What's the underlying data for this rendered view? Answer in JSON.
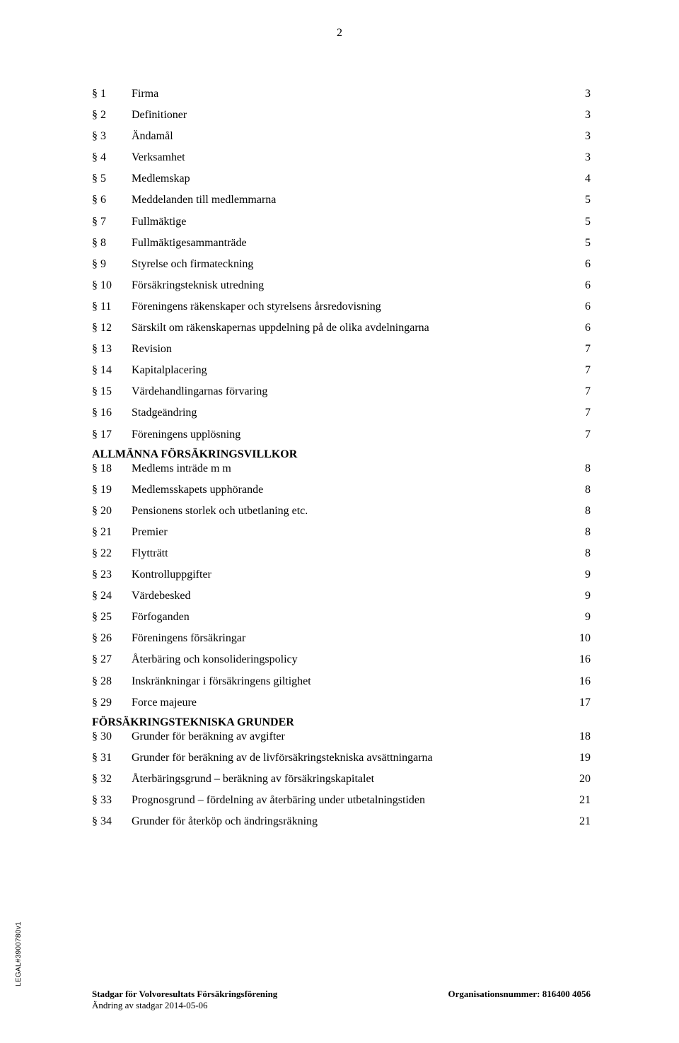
{
  "page_number": "2",
  "toc": [
    {
      "sym": "§ 1",
      "title": "Firma",
      "page": "3"
    },
    {
      "sym": "§ 2",
      "title": "Definitioner",
      "page": "3"
    },
    {
      "sym": "§ 3",
      "title": "Ändamål",
      "page": "3"
    },
    {
      "sym": "§ 4",
      "title": "Verksamhet",
      "page": "3"
    },
    {
      "sym": "§ 5",
      "title": "Medlemskap",
      "page": "4"
    },
    {
      "sym": "§ 6",
      "title": "Meddelanden till medlemmarna",
      "page": "5"
    },
    {
      "sym": "§ 7",
      "title": "Fullmäktige",
      "page": "5"
    },
    {
      "sym": "§ 8",
      "title": "Fullmäktigesammanträde",
      "page": "5"
    },
    {
      "sym": "§ 9",
      "title": "Styrelse och firmateckning",
      "page": "6"
    },
    {
      "sym": "§ 10",
      "title": "Försäkringsteknisk utredning",
      "page": "6"
    },
    {
      "sym": "§ 11",
      "title": "Föreningens räkenskaper och styrelsens årsredovisning",
      "page": "6"
    },
    {
      "sym": "§ 12",
      "title": "Särskilt om räkenskapernas uppdelning på de olika avdelningarna",
      "page": "6"
    },
    {
      "sym": "§ 13",
      "title": "Revision",
      "page": "7"
    },
    {
      "sym": "§ 14",
      "title": "Kapitalplacering",
      "page": "7"
    },
    {
      "sym": "§ 15",
      "title": "Värdehandlingarnas förvaring",
      "page": "7"
    },
    {
      "sym": "§ 16",
      "title": "Stadgeändring",
      "page": "7"
    },
    {
      "sym": "§ 17",
      "title": "Föreningens upplösning",
      "page": "7"
    }
  ],
  "section1_heading": "ALLMÄNNA FÖRSÄKRINGSVILLKOR",
  "toc2": [
    {
      "sym": "§ 18",
      "title": "Medlems inträde m m",
      "page": "8"
    },
    {
      "sym": "§ 19",
      "title": "Medlemsskapets upphörande",
      "page": "8"
    },
    {
      "sym": "§ 20",
      "title": "Pensionens storlek och utbetlaning etc.",
      "page": "8"
    },
    {
      "sym": "§ 21",
      "title": "Premier",
      "page": "8"
    },
    {
      "sym": "§ 22",
      "title": "Flytträtt",
      "page": "8"
    },
    {
      "sym": "§ 23",
      "title": "Kontrolluppgifter",
      "page": "9"
    },
    {
      "sym": "§ 24",
      "title": "Värdebesked",
      "page": "9"
    },
    {
      "sym": "§ 25",
      "title": "Förfoganden",
      "page": "9"
    },
    {
      "sym": "§ 26",
      "title": "Föreningens försäkringar",
      "page": "10"
    },
    {
      "sym": "§ 27",
      "title": "Återbäring och konsolideringspolicy",
      "page": "16"
    },
    {
      "sym": "§ 28",
      "title": "Inskränkningar i försäkringens giltighet",
      "page": "16"
    },
    {
      "sym": "§ 29",
      "title": "Force majeure",
      "page": "17"
    }
  ],
  "section2_heading": "FÖRSÄKRINGSTEKNISKA GRUNDER",
  "toc3": [
    {
      "sym": "§ 30",
      "title": "Grunder för beräkning av avgifter",
      "page": "18"
    },
    {
      "sym": "§ 31",
      "title": "Grunder för beräkning av de livförsäkringstekniska avsättningarna",
      "page": "19"
    },
    {
      "sym": "§ 32",
      "title": "Återbäringsgrund – beräkning av försäkringskapitalet",
      "page": "20"
    },
    {
      "sym": "§ 33",
      "title": "Prognosgrund – fördelning av återbäring under utbetalningstiden",
      "page": "21"
    },
    {
      "sym": "§ 34",
      "title": "Grunder för återköp och ändringsräkning",
      "page": "21"
    }
  ],
  "footer": {
    "left_main": "Stadgar för Volvoresultats Försäkringsförening",
    "left_sub": "Ändring av stadgar 2014-05-06",
    "right": "Organisationsnummer: 816400 4056"
  },
  "side_label": "LEGAL#3900780v1"
}
